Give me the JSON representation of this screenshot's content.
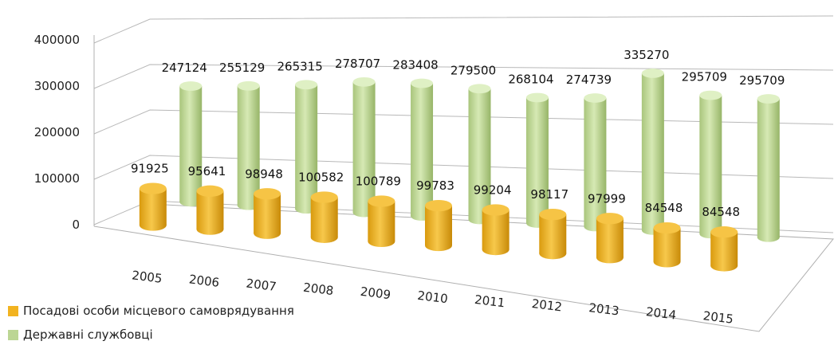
{
  "chart_data": {
    "type": "bar",
    "style": "3d-cylinder",
    "categories": [
      "2005",
      "2006",
      "2007",
      "2008",
      "2009",
      "2010",
      "2011",
      "2012",
      "2013",
      "2014",
      "2015"
    ],
    "series": [
      {
        "name": "Посадові особи місцевого самоврядування",
        "color": "#f2b320",
        "values": [
          91925,
          95641,
          98948,
          100582,
          100789,
          99783,
          99204,
          98117,
          97999,
          84548,
          84548
        ]
      },
      {
        "name": "Державні службовці",
        "color": "#bcd694",
        "values": [
          247124,
          255129,
          265315,
          278707,
          283408,
          279500,
          268104,
          274739,
          335270,
          295709,
          295709
        ]
      }
    ],
    "ylim": [
      0,
      400000
    ],
    "yticks": [
      "0",
      "100000",
      "200000",
      "300000",
      "400000"
    ],
    "grid": true,
    "legend_position": "bottom-left"
  }
}
